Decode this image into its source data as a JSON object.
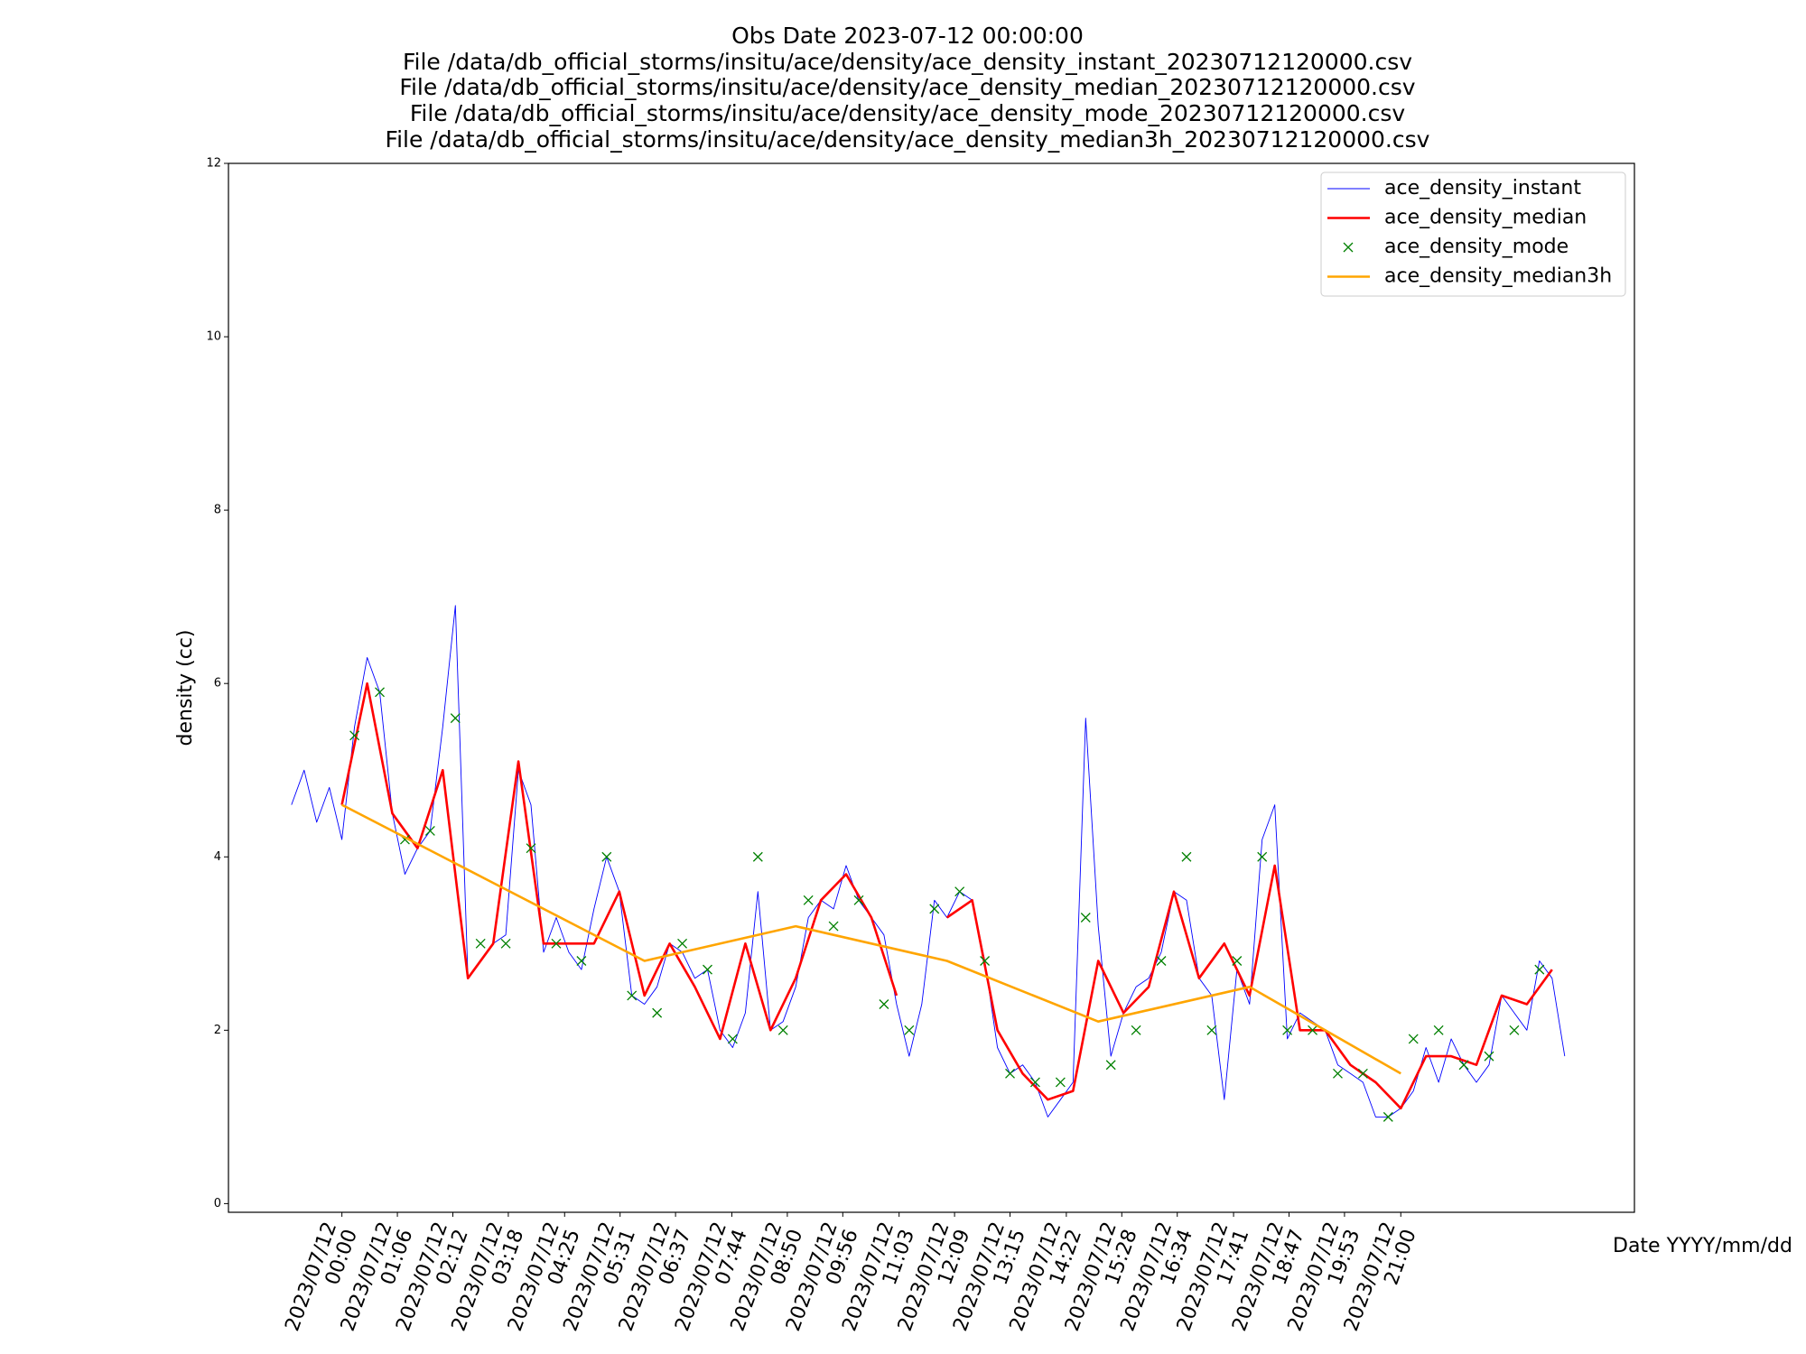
{
  "chart_data": {
    "type": "line",
    "title": [
      "Obs Date 2023-07-12 00:00:00",
      "File /data/db_official_storms/insitu/ace/density/ace_density_instant_20230712120000.csv",
      "File /data/db_official_storms/insitu/ace/density/ace_density_median_20230712120000.csv",
      "File /data/db_official_storms/insitu/ace/density/ace_density_mode_20230712120000.csv",
      "File /data/db_official_storms/insitu/ace/density/ace_density_median3h_20230712120000.csv"
    ],
    "x_label": "Date YYYY/mm/dd",
    "y_label": "density (cc)",
    "xlim": [
      "2023/07/11 21:45",
      "2023/07/13 01:38"
    ],
    "xticks": [
      "2023/07/12 00:00",
      "2023/07/12 01:06",
      "2023/07/12 02:12",
      "2023/07/12 03:18",
      "2023/07/12 04:25",
      "2023/07/12 05:31",
      "2023/07/12 06:37",
      "2023/07/12 07:44",
      "2023/07/12 08:50",
      "2023/07/12 09:56",
      "2023/07/12 11:03",
      "2023/07/12 12:09",
      "2023/07/12 13:15",
      "2023/07/12 14:22",
      "2023/07/12 15:28",
      "2023/07/12 16:34",
      "2023/07/12 17:41",
      "2023/07/12 18:47",
      "2023/07/12 19:53",
      "2023/07/12 21:00"
    ],
    "ylim": [
      -0.1,
      12
    ],
    "yticks": [
      0,
      2,
      4,
      6,
      8,
      10,
      12
    ],
    "grid": false,
    "legend": "upper right",
    "series": [
      {
        "name": "ace_density_instant",
        "color": "#0000ff",
        "style": "line",
        "x": [
          "2023/07/11 23:00",
          "2023/07/11 23:15",
          "2023/07/11 23:30",
          "2023/07/11 23:45",
          "2023/07/12 00:00",
          "2023/07/12 00:15",
          "2023/07/12 00:30",
          "2023/07/12 00:45",
          "2023/07/12 01:00",
          "2023/07/12 01:15",
          "2023/07/12 01:30",
          "2023/07/12 01:45",
          "2023/07/12 02:00",
          "2023/07/12 02:15",
          "2023/07/12 02:30",
          "2023/07/12 02:45",
          "2023/07/12 03:00",
          "2023/07/12 03:15",
          "2023/07/12 03:30",
          "2023/07/12 03:45",
          "2023/07/12 04:00",
          "2023/07/12 04:15",
          "2023/07/12 04:30",
          "2023/07/12 04:45",
          "2023/07/12 05:00",
          "2023/07/12 05:15",
          "2023/07/12 05:30",
          "2023/07/12 05:45",
          "2023/07/12 06:00",
          "2023/07/12 06:15",
          "2023/07/12 06:30",
          "2023/07/12 06:45",
          "2023/07/12 07:00",
          "2023/07/12 07:15",
          "2023/07/12 07:30",
          "2023/07/12 07:45",
          "2023/07/12 08:00",
          "2023/07/12 08:15",
          "2023/07/12 08:30",
          "2023/07/12 08:45",
          "2023/07/12 09:00",
          "2023/07/12 09:15",
          "2023/07/12 09:30",
          "2023/07/12 09:45",
          "2023/07/12 10:00",
          "2023/07/12 10:15",
          "2023/07/12 10:30",
          "2023/07/12 10:45",
          "2023/07/12 11:00",
          "2023/07/12 11:15",
          "2023/07/12 11:30",
          "2023/07/12 11:45",
          "2023/07/12 12:00",
          "2023/07/12 12:15",
          "2023/07/12 12:30",
          "2023/07/12 12:45",
          "2023/07/12 13:00",
          "2023/07/12 13:15",
          "2023/07/12 13:30",
          "2023/07/12 13:45",
          "2023/07/12 14:00",
          "2023/07/12 14:15",
          "2023/07/12 14:30",
          "2023/07/12 14:45",
          "2023/07/12 15:00",
          "2023/07/12 15:15",
          "2023/07/12 15:30",
          "2023/07/12 15:45",
          "2023/07/12 16:00",
          "2023/07/12 16:15",
          "2023/07/12 16:30",
          "2023/07/12 16:45",
          "2023/07/12 17:00",
          "2023/07/12 17:15",
          "2023/07/12 17:30",
          "2023/07/12 17:45",
          "2023/07/12 18:00",
          "2023/07/12 18:15",
          "2023/07/12 18:30",
          "2023/07/12 18:45",
          "2023/07/12 19:00",
          "2023/07/12 19:15",
          "2023/07/12 19:30",
          "2023/07/12 19:45",
          "2023/07/12 20:00",
          "2023/07/12 20:15",
          "2023/07/12 20:30",
          "2023/07/12 20:45",
          "2023/07/12 21:00",
          "2023/07/12 21:15",
          "2023/07/12 21:30",
          "2023/07/12 21:45",
          "2023/07/12 22:00",
          "2023/07/12 22:15",
          "2023/07/12 22:30",
          "2023/07/12 22:45",
          "2023/07/12 23:00",
          "2023/07/12 23:15",
          "2023/07/12 23:30",
          "2023/07/12 23:45",
          "2023/07/13 00:00",
          "2023/07/13 00:15"
        ],
        "values": [
          4.6,
          5.0,
          4.4,
          4.8,
          4.2,
          5.5,
          6.3,
          5.9,
          4.5,
          3.8,
          4.1,
          4.3,
          5.5,
          6.9,
          2.6,
          2.8,
          3.0,
          3.1,
          5.0,
          4.6,
          2.9,
          3.3,
          2.9,
          2.7,
          3.4,
          4.0,
          3.6,
          2.4,
          2.3,
          2.5,
          3.0,
          2.9,
          2.6,
          2.7,
          2.0,
          1.8,
          2.2,
          3.6,
          2.0,
          2.1,
          2.5,
          3.3,
          3.5,
          3.4,
          3.9,
          3.5,
          3.3,
          3.1,
          2.3,
          1.7,
          2.3,
          3.5,
          3.3,
          3.6,
          3.5,
          2.8,
          1.8,
          1.5,
          1.6,
          1.4,
          1.0,
          1.2,
          1.4,
          5.6,
          3.2,
          1.7,
          2.2,
          2.5,
          2.6,
          2.9,
          3.6,
          3.5,
          2.6,
          2.4,
          1.2,
          2.7,
          2.3,
          4.2,
          4.6,
          1.9,
          2.2,
          2.1,
          2.0,
          1.6,
          1.5,
          1.4,
          1.0,
          1.0,
          1.1,
          1.3,
          1.8,
          1.4,
          1.9,
          1.6,
          1.4,
          1.6,
          2.4,
          2.2,
          2.0,
          2.8,
          2.6,
          1.7
        ]
      },
      {
        "name": "ace_density_median",
        "color": "#ff0000",
        "style": "line",
        "x": [
          "2023/07/12 00:00",
          "2023/07/12 00:30",
          "2023/07/12 01:00",
          "2023/07/12 01:30",
          "2023/07/12 02:00",
          "2023/07/12 02:30",
          "2023/07/12 03:00",
          "2023/07/12 03:30",
          "2023/07/12 04:00",
          "2023/07/12 04:30",
          "2023/07/12 05:00",
          "2023/07/12 05:30",
          "2023/07/12 06:00",
          "2023/07/12 06:30",
          "2023/07/12 07:00",
          "2023/07/12 07:30",
          "2023/07/12 08:00",
          "2023/07/12 08:30",
          "2023/07/12 09:00",
          "2023/07/12 09:30",
          "2023/07/12 10:00",
          "2023/07/12 10:30",
          "2023/07/12 11:00",
          "2023/07/12 11:30",
          "2023/07/12 12:00",
          "2023/07/12 12:30",
          "2023/07/12 13:00",
          "2023/07/12 13:30",
          "2023/07/12 14:00",
          "2023/07/12 14:30",
          "2023/07/12 15:00",
          "2023/07/12 15:30",
          "2023/07/12 16:00",
          "2023/07/12 16:30",
          "2023/07/12 17:00",
          "2023/07/12 17:30",
          "2023/07/12 18:00",
          "2023/07/12 18:30",
          "2023/07/12 19:00",
          "2023/07/12 19:30",
          "2023/07/12 20:00",
          "2023/07/12 20:30",
          "2023/07/12 21:00",
          "2023/07/12 21:30",
          "2023/07/12 22:00",
          "2023/07/12 22:30",
          "2023/07/12 23:00",
          "2023/07/12 23:30",
          "2023/07/13 00:00"
        ],
        "values": [
          4.6,
          6.0,
          4.5,
          4.1,
          5.0,
          2.6,
          3.0,
          5.1,
          3.0,
          3.0,
          3.0,
          3.6,
          2.4,
          3.0,
          2.5,
          1.9,
          3.0,
          2.0,
          2.6,
          3.5,
          3.8,
          3.3,
          2.4,
          null,
          3.3,
          3.5,
          2.0,
          1.5,
          1.2,
          1.3,
          2.8,
          2.2,
          2.5,
          3.6,
          2.6,
          3.0,
          2.4,
          3.9,
          2.0,
          2.0,
          1.6,
          1.4,
          1.1,
          1.7,
          1.7,
          1.6,
          2.4,
          2.3,
          2.7
        ]
      },
      {
        "name": "ace_density_mode",
        "color": "#008000",
        "style": "marker",
        "x": [
          "2023/07/12 00:15",
          "2023/07/12 00:45",
          "2023/07/12 01:15",
          "2023/07/12 01:45",
          "2023/07/12 02:15",
          "2023/07/12 02:45",
          "2023/07/12 03:15",
          "2023/07/12 03:45",
          "2023/07/12 04:15",
          "2023/07/12 04:45",
          "2023/07/12 05:15",
          "2023/07/12 05:45",
          "2023/07/12 06:15",
          "2023/07/12 06:45",
          "2023/07/12 07:15",
          "2023/07/12 07:45",
          "2023/07/12 08:15",
          "2023/07/12 08:45",
          "2023/07/12 09:15",
          "2023/07/12 09:45",
          "2023/07/12 10:15",
          "2023/07/12 10:45",
          "2023/07/12 11:15",
          "2023/07/12 11:45",
          "2023/07/12 12:15",
          "2023/07/12 12:45",
          "2023/07/12 13:15",
          "2023/07/12 13:45",
          "2023/07/12 14:15",
          "2023/07/12 14:45",
          "2023/07/12 15:15",
          "2023/07/12 15:45",
          "2023/07/12 16:15",
          "2023/07/12 16:45",
          "2023/07/12 17:15",
          "2023/07/12 17:45",
          "2023/07/12 18:15",
          "2023/07/12 18:45",
          "2023/07/12 19:15",
          "2023/07/12 19:45",
          "2023/07/12 20:15",
          "2023/07/12 20:45",
          "2023/07/12 21:15",
          "2023/07/12 21:45",
          "2023/07/12 22:15",
          "2023/07/12 22:45",
          "2023/07/12 23:15",
          "2023/07/12 23:45"
        ],
        "values": [
          5.4,
          5.9,
          4.2,
          4.3,
          5.6,
          3.0,
          3.0,
          4.1,
          3.0,
          2.8,
          4.0,
          2.4,
          2.2,
          3.0,
          2.7,
          1.9,
          4.0,
          2.0,
          3.5,
          3.2,
          3.5,
          2.3,
          2.0,
          3.4,
          3.6,
          2.8,
          1.5,
          1.4,
          1.4,
          3.3,
          1.6,
          2.0,
          2.8,
          4.0,
          2.0,
          2.8,
          4.0,
          2.0,
          2.0,
          1.5,
          1.5,
          1.0,
          1.9,
          2.0,
          1.6,
          1.7,
          2.0,
          2.7
        ]
      },
      {
        "name": "ace_density_median3h",
        "color": "#ffa500",
        "style": "line",
        "x": [
          "2023/07/12 00:00",
          "2023/07/12 03:00",
          "2023/07/12 06:00",
          "2023/07/12 09:00",
          "2023/07/12 12:00",
          "2023/07/12 15:00",
          "2023/07/12 18:00",
          "2023/07/12 21:00"
        ],
        "values": [
          4.6,
          3.7,
          2.8,
          3.2,
          2.8,
          2.1,
          2.5,
          1.5
        ]
      }
    ]
  }
}
